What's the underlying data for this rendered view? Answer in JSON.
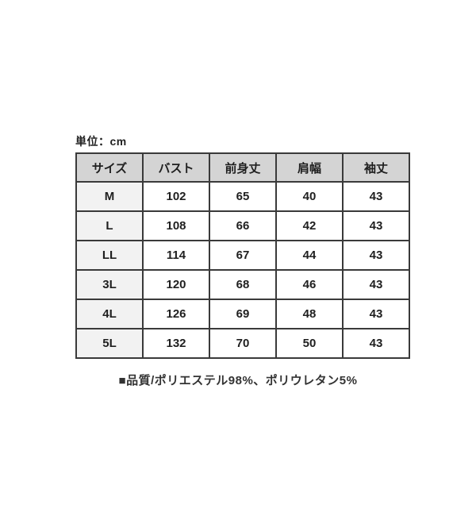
{
  "unit_label": "単位：cm",
  "footer_note": "■品質/ポリエステル98%、ポリウレタン5%",
  "colors": {
    "page_bg": "#ffffff",
    "header_bg": "#d4d4d4",
    "size_col_bg": "#f2f2f2",
    "border": "#3a3a3a",
    "text": "#1f1f1f"
  },
  "chart_data": {
    "type": "table",
    "title": "単位：cm",
    "columns": [
      "サイズ",
      "バスト",
      "前身丈",
      "肩幅",
      "袖丈"
    ],
    "rows": [
      [
        "M",
        102,
        65,
        40,
        43
      ],
      [
        "L",
        108,
        66,
        42,
        43
      ],
      [
        "LL",
        114,
        67,
        44,
        43
      ],
      [
        "3L",
        120,
        68,
        46,
        43
      ],
      [
        "4L",
        126,
        69,
        48,
        43
      ],
      [
        "5L",
        132,
        70,
        50,
        43
      ]
    ],
    "note": "■品質/ポリエステル98%、ポリウレタン5%"
  }
}
